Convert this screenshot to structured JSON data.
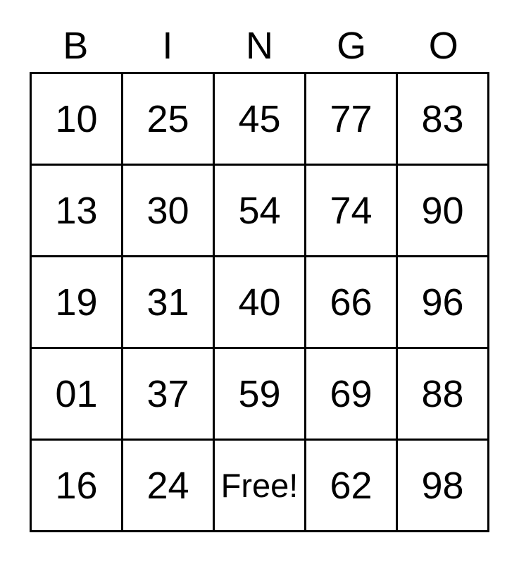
{
  "header": {
    "letters": [
      "B",
      "I",
      "N",
      "G",
      "O"
    ]
  },
  "card": {
    "free_label": "Free!",
    "rows": [
      [
        "10",
        "25",
        "45",
        "77",
        "83"
      ],
      [
        "13",
        "30",
        "54",
        "74",
        "90"
      ],
      [
        "19",
        "31",
        "40",
        "66",
        "96"
      ],
      [
        "01",
        "37",
        "59",
        "69",
        "88"
      ],
      [
        "16",
        "24",
        "Free!",
        "62",
        "98"
      ]
    ]
  },
  "colors": {
    "background": "#ffffff",
    "grid_lines": "#000000",
    "text": "#000000"
  }
}
